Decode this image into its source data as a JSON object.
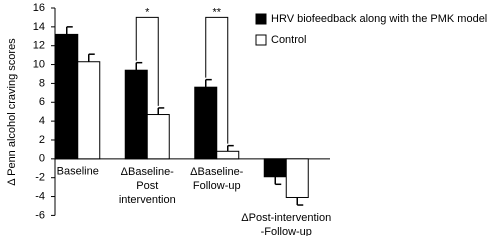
{
  "chart_data": {
    "type": "bar",
    "y_label": "Δ Penn alcohol craving scores",
    "categories": [
      "Baseline",
      "ΔBaseline-\nPost\nintervention",
      "ΔBaseline-\nFollow-up",
      "ΔPost-intervention\n-Follow-up"
    ],
    "series": [
      {
        "name": "HRV biofeedback along with the PMK model",
        "color": "#000000",
        "values": [
          13.2,
          9.4,
          7.6,
          -1.9
        ],
        "errors": [
          0.8,
          0.8,
          0.8,
          0.8
        ]
      },
      {
        "name": "Control",
        "color": "#ffffff",
        "values": [
          10.3,
          4.7,
          0.8,
          -4.1
        ],
        "errors": [
          0.8,
          0.7,
          0.6,
          0.8
        ]
      }
    ],
    "annotations": [
      "*",
      "**"
    ],
    "ylim": [
      -6,
      16
    ],
    "yticks": [
      -6,
      -4,
      -2,
      0,
      2,
      4,
      6,
      8,
      10,
      12,
      14,
      16
    ]
  }
}
